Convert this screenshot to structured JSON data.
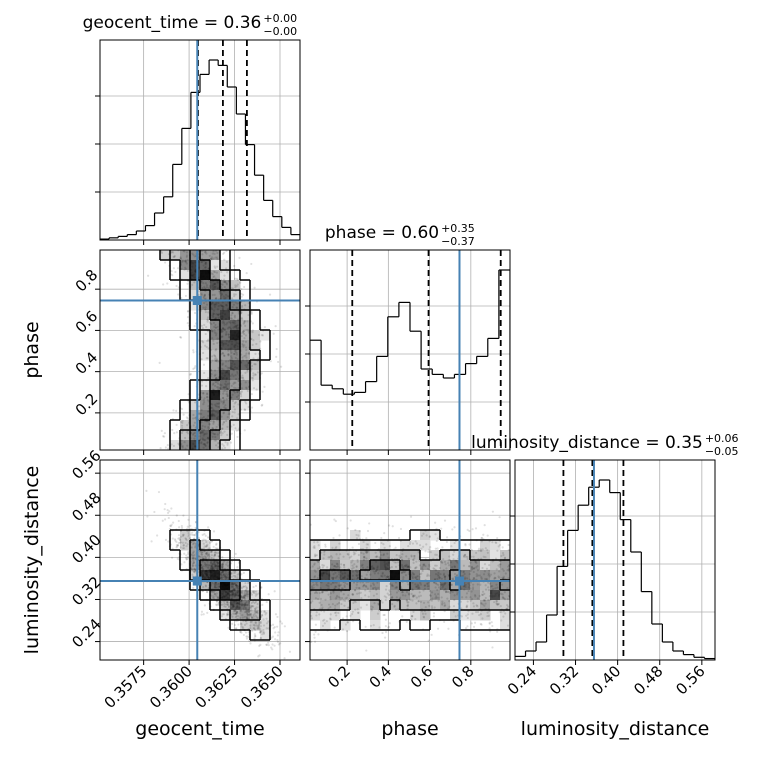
{
  "chart_data": {
    "type": "corner",
    "parameters": [
      "geocent_time",
      "phase",
      "luminosity_distance"
    ],
    "truth": {
      "geocent_time": 0.36045,
      "phase": 0.745,
      "luminosity_distance": 0.355
    },
    "truth_color": "#4682b4",
    "contour_color": "#000000",
    "marginal_titles": [
      {
        "name": "geocent_time",
        "text": "geocent_time = 0.36",
        "plus": "+0.00",
        "minus": "−0.00",
        "quantiles": [
          0.36049,
          0.36186,
          0.36318
        ]
      },
      {
        "name": "phase",
        "text": "phase = 0.60",
        "plus": "+0.35",
        "minus": "−0.37",
        "quantiles": [
          0.225,
          0.595,
          0.945
        ]
      },
      {
        "name": "luminosity_distance",
        "text": "luminosity_distance = 0.35",
        "plus": "+0.06",
        "minus": "−0.05",
        "quantiles": [
          0.297,
          0.352,
          0.411
        ]
      }
    ],
    "ranges": {
      "geocent_time": [
        0.3551,
        0.3661
      ],
      "phase": [
        0.02,
        0.99
      ],
      "luminosity_distance": [
        0.205,
        0.585
      ]
    },
    "ticks": {
      "geocent_time": {
        "values": [
          0.3575,
          0.36,
          0.3625,
          0.365
        ],
        "labels": [
          "0.3575",
          "0.3600",
          "0.3625",
          "0.3650"
        ]
      },
      "phase": {
        "values": [
          0.2,
          0.4,
          0.6,
          0.8
        ],
        "labels": [
          "0.2",
          "0.4",
          "0.6",
          "0.8"
        ]
      },
      "luminosity_distance": {
        "values": [
          0.24,
          0.32,
          0.4,
          0.48,
          0.56
        ],
        "labels": [
          "0.24",
          "0.32",
          "0.40",
          "0.48",
          "0.56"
        ]
      }
    },
    "axis_labels": {
      "x": [
        "geocent_time",
        "phase",
        "luminosity_distance"
      ],
      "y": [
        "phase",
        "luminosity_distance"
      ]
    },
    "histograms": {
      "geocent_time": [
        0.005,
        0.012,
        0.02,
        0.03,
        0.05,
        0.08,
        0.15,
        0.24,
        0.42,
        0.62,
        0.82,
        0.92,
        1.0,
        0.97,
        0.85,
        0.7,
        0.53,
        0.36,
        0.22,
        0.13,
        0.07,
        0.03
      ],
      "phase": [
        0.61,
        0.36,
        0.34,
        0.31,
        0.32,
        0.38,
        0.52,
        0.74,
        0.82,
        0.66,
        0.45,
        0.42,
        0.4,
        0.42,
        0.48,
        0.52,
        0.62,
        1.0
      ],
      "luminosity_distance": [
        0.02,
        0.05,
        0.1,
        0.25,
        0.52,
        0.72,
        0.86,
        0.96,
        1.0,
        0.93,
        0.78,
        0.6,
        0.38,
        0.2,
        0.1,
        0.05,
        0.03,
        0.015,
        0.008
      ]
    },
    "grid": true
  }
}
